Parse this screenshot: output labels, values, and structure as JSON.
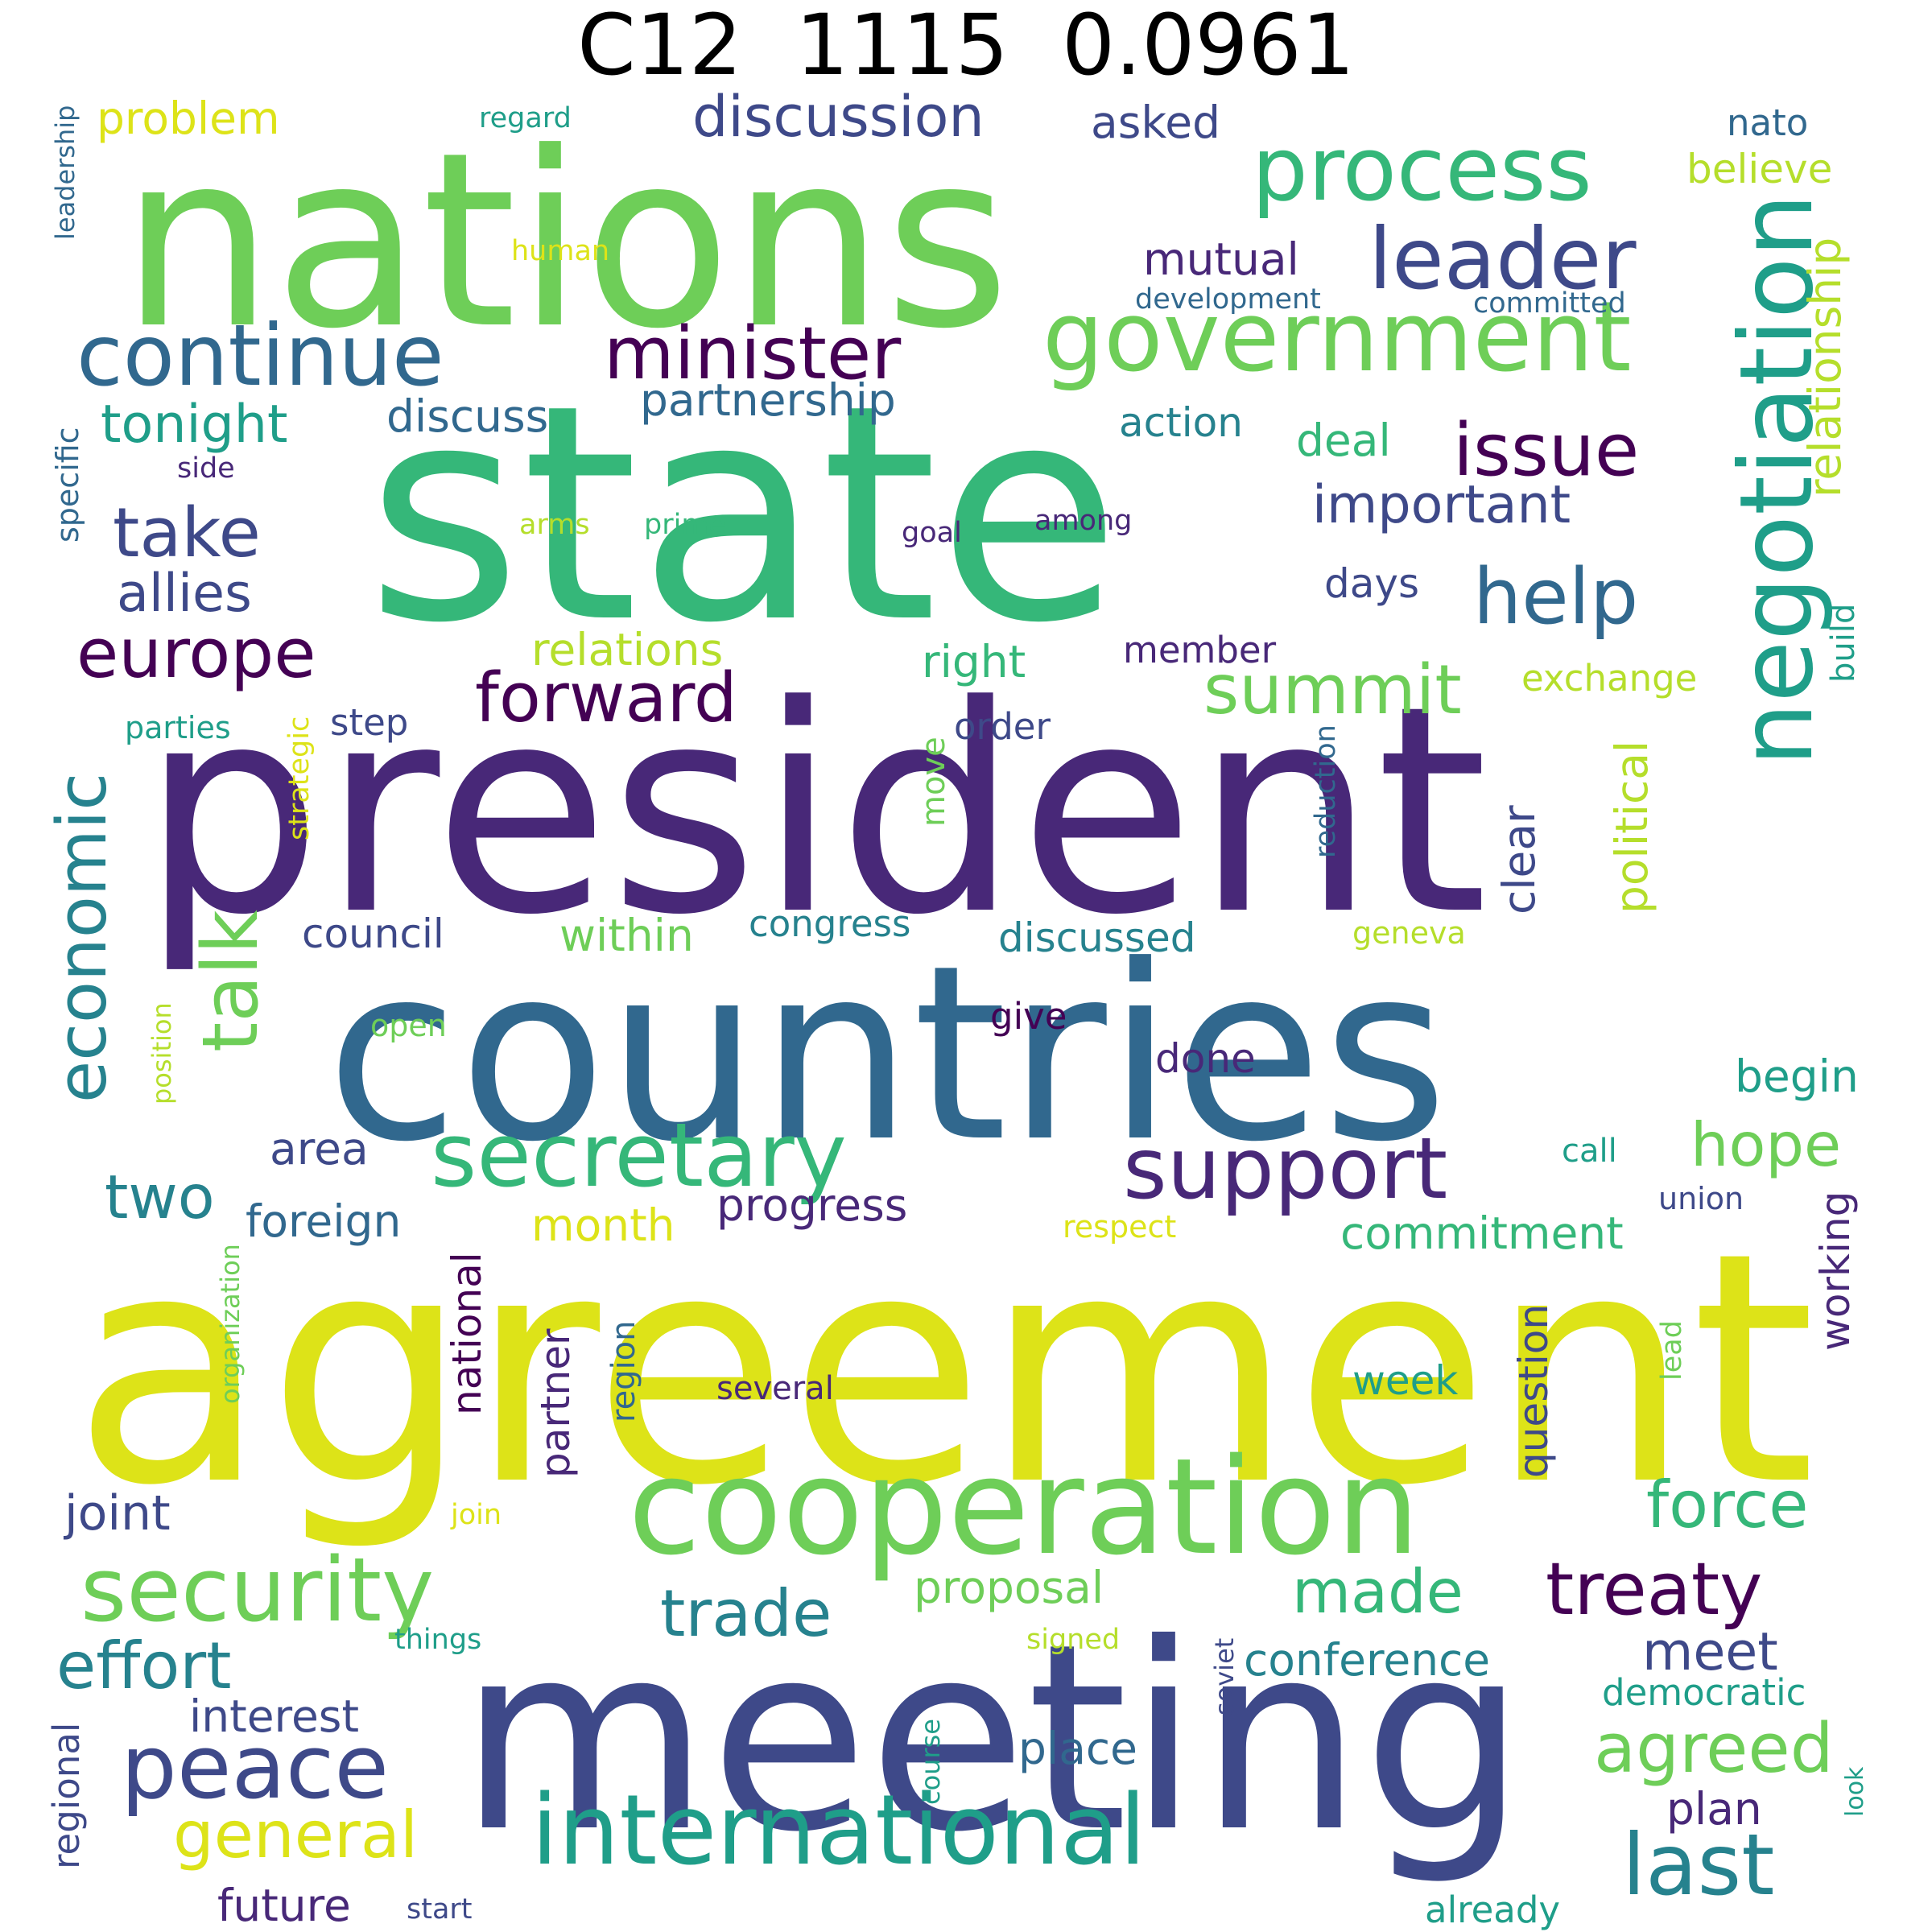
{
  "title": "C12  1115  0.0961",
  "colors": {
    "c1": "#440154",
    "c2": "#482878",
    "c3": "#3e4989",
    "c4": "#31688e",
    "c5": "#26828e",
    "c6": "#1f9e89",
    "c7": "#35b779",
    "c8": "#6ece58",
    "c9": "#b5de2b",
    "c10": "#dde318"
  },
  "words": [
    {
      "text": "nations",
      "color": "c8"
    },
    {
      "text": "state",
      "color": "c7"
    },
    {
      "text": "president",
      "color": "c2"
    },
    {
      "text": "countries",
      "color": "c4"
    },
    {
      "text": "agreement",
      "color": "c10"
    },
    {
      "text": "meeting",
      "color": "c3"
    },
    {
      "text": "cooperation",
      "color": "c8"
    },
    {
      "text": "negotiation",
      "color": "c6"
    },
    {
      "text": "process",
      "color": "c7"
    },
    {
      "text": "government",
      "color": "c8"
    },
    {
      "text": "leader",
      "color": "c3"
    },
    {
      "text": "continue",
      "color": "c4"
    },
    {
      "text": "minister",
      "color": "c1"
    },
    {
      "text": "secretary",
      "color": "c7"
    },
    {
      "text": "support",
      "color": "c2"
    },
    {
      "text": "international",
      "color": "c6"
    },
    {
      "text": "security",
      "color": "c8"
    },
    {
      "text": "treaty",
      "color": "c1"
    },
    {
      "text": "peace",
      "color": "c3"
    },
    {
      "text": "europe",
      "color": "c1"
    },
    {
      "text": "forward",
      "color": "c1"
    },
    {
      "text": "help",
      "color": "c4"
    },
    {
      "text": "issue",
      "color": "c1"
    },
    {
      "text": "summit",
      "color": "c8"
    },
    {
      "text": "talk",
      "color": "c8"
    },
    {
      "text": "economic",
      "color": "c5"
    },
    {
      "text": "take",
      "color": "c3"
    },
    {
      "text": "discussion",
      "color": "c3"
    },
    {
      "text": "trade",
      "color": "c5"
    },
    {
      "text": "effort",
      "color": "c5"
    },
    {
      "text": "agreed",
      "color": "c8"
    },
    {
      "text": "last",
      "color": "c5"
    },
    {
      "text": "force",
      "color": "c7"
    },
    {
      "text": "general",
      "color": "c10"
    },
    {
      "text": "made",
      "color": "c7"
    },
    {
      "text": "important",
      "color": "c3"
    },
    {
      "text": "two",
      "color": "c5"
    },
    {
      "text": "hope",
      "color": "c8"
    },
    {
      "text": "allies",
      "color": "c3"
    },
    {
      "text": "tonight",
      "color": "c6"
    },
    {
      "text": "partnership",
      "color": "c4"
    },
    {
      "text": "relationship",
      "color": "c9"
    },
    {
      "text": "problem",
      "color": "c10"
    },
    {
      "text": "meet",
      "color": "c3"
    },
    {
      "text": "mutual",
      "color": "c2"
    },
    {
      "text": "asked",
      "color": "c3"
    },
    {
      "text": "believe",
      "color": "c9"
    },
    {
      "text": "nato",
      "color": "c4"
    },
    {
      "text": "discuss",
      "color": "c4"
    },
    {
      "text": "deal",
      "color": "c7"
    },
    {
      "text": "action",
      "color": "c5"
    },
    {
      "text": "relations",
      "color": "c9"
    },
    {
      "text": "right",
      "color": "c7"
    },
    {
      "text": "days",
      "color": "c3"
    },
    {
      "text": "member",
      "color": "c2"
    },
    {
      "text": "exchange",
      "color": "c9"
    },
    {
      "text": "political",
      "color": "c9"
    },
    {
      "text": "clear",
      "color": "c3"
    },
    {
      "text": "within",
      "color": "c8"
    },
    {
      "text": "congress",
      "color": "c5"
    },
    {
      "text": "council",
      "color": "c3"
    },
    {
      "text": "discussed",
      "color": "c5"
    },
    {
      "text": "done",
      "color": "c2"
    },
    {
      "text": "begin",
      "color": "c6"
    },
    {
      "text": "proposal",
      "color": "c8"
    },
    {
      "text": "commitment",
      "color": "c7"
    },
    {
      "text": "progress",
      "color": "c2"
    },
    {
      "text": "foreign",
      "color": "c4"
    },
    {
      "text": "month",
      "color": "c10"
    },
    {
      "text": "area",
      "color": "c3"
    },
    {
      "text": "joint",
      "color": "c3"
    },
    {
      "text": "interest",
      "color": "c3"
    },
    {
      "text": "conference",
      "color": "c5"
    },
    {
      "text": "place",
      "color": "c4"
    },
    {
      "text": "plan",
      "color": "c2"
    },
    {
      "text": "future",
      "color": "c2"
    },
    {
      "text": "question",
      "color": "c3"
    },
    {
      "text": "working",
      "color": "c2"
    },
    {
      "text": "national",
      "color": "c1"
    },
    {
      "text": "partner",
      "color": "c2"
    },
    {
      "text": "week",
      "color": "c6"
    },
    {
      "text": "democratic",
      "color": "c6"
    },
    {
      "text": "already",
      "color": "c6"
    },
    {
      "text": "regional",
      "color": "c3"
    },
    {
      "text": "step",
      "color": "c3"
    },
    {
      "text": "order",
      "color": "c3"
    },
    {
      "text": "move",
      "color": "c8"
    },
    {
      "text": "give",
      "color": "c1"
    },
    {
      "text": "call",
      "color": "c6"
    },
    {
      "text": "union",
      "color": "c3"
    },
    {
      "text": "respect",
      "color": "c10"
    },
    {
      "text": "build",
      "color": "c6"
    },
    {
      "text": "region",
      "color": "c4"
    },
    {
      "text": "several",
      "color": "c2"
    },
    {
      "text": "lead",
      "color": "c8"
    },
    {
      "text": "open",
      "color": "c8"
    },
    {
      "text": "geneva",
      "color": "c9"
    },
    {
      "text": "reduction",
      "color": "c4"
    },
    {
      "text": "strategic",
      "color": "c10"
    },
    {
      "text": "parties",
      "color": "c6"
    },
    {
      "text": "specific",
      "color": "c4"
    },
    {
      "text": "side",
      "color": "c2"
    },
    {
      "text": "arms",
      "color": "c9"
    },
    {
      "text": "prime",
      "color": "c7"
    },
    {
      "text": "goal",
      "color": "c2"
    },
    {
      "text": "among",
      "color": "c2"
    },
    {
      "text": "human",
      "color": "c10"
    },
    {
      "text": "development",
      "color": "c4"
    },
    {
      "text": "committed",
      "color": "c4"
    },
    {
      "text": "regard",
      "color": "c6"
    },
    {
      "text": "leadership",
      "color": "c4"
    },
    {
      "text": "position",
      "color": "c9"
    },
    {
      "text": "organization",
      "color": "c8"
    },
    {
      "text": "join",
      "color": "c10"
    },
    {
      "text": "things",
      "color": "c6"
    },
    {
      "text": "signed",
      "color": "c9"
    },
    {
      "text": "soviet",
      "color": "c3"
    },
    {
      "text": "course",
      "color": "c6"
    },
    {
      "text": "look",
      "color": "c6"
    },
    {
      "text": "start",
      "color": "c3"
    }
  ]
}
